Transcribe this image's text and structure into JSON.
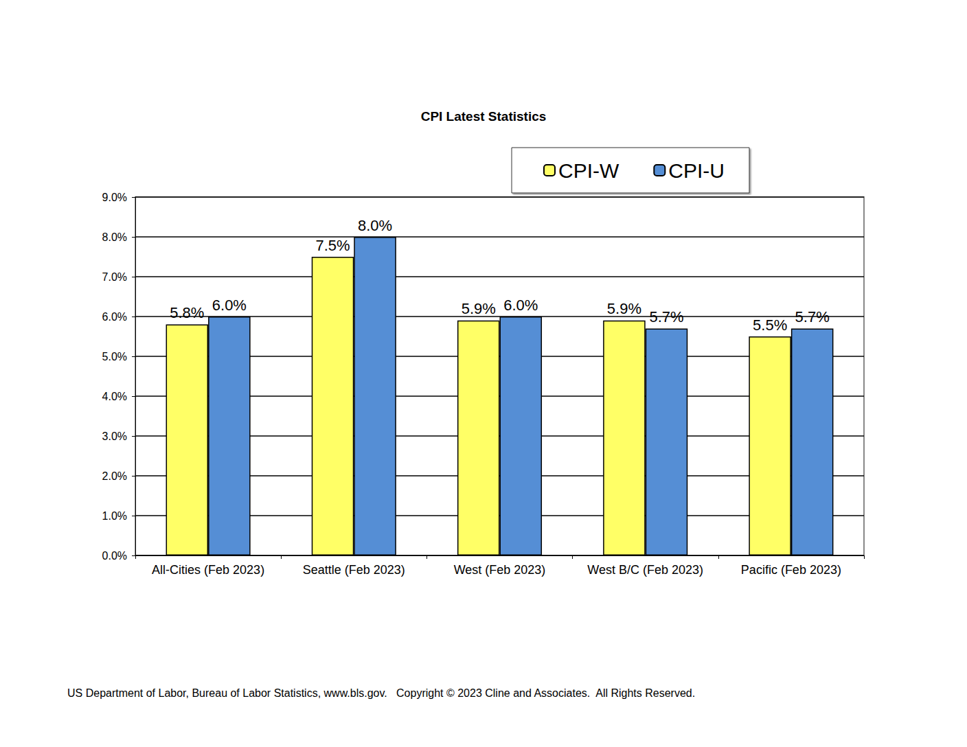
{
  "chart_data": {
    "type": "bar",
    "title": "CPI Latest Statistics",
    "categories": [
      "All-Cities (Feb 2023)",
      "Seattle (Feb 2023)",
      "West (Feb 2023)",
      "West B/C (Feb 2023)",
      "Pacific (Feb 2023)"
    ],
    "series": [
      {
        "name": "CPI-W",
        "color": "#ffff66",
        "values": [
          5.8,
          7.5,
          5.9,
          5.9,
          5.5
        ],
        "value_labels": [
          "5.8%",
          "7.5%",
          "5.9%",
          "5.9%",
          "5.5%"
        ]
      },
      {
        "name": "CPI-U",
        "color": "#558ed5",
        "values": [
          6.0,
          8.0,
          6.0,
          5.7,
          5.7
        ],
        "value_labels": [
          "6.0%",
          "8.0%",
          "6.0%",
          "5.7%",
          "5.7%"
        ]
      }
    ],
    "ylim": [
      0,
      9
    ],
    "yticks": [
      {
        "value": 0,
        "label": "0.0%"
      },
      {
        "value": 1,
        "label": "1.0%"
      },
      {
        "value": 2,
        "label": "2.0%"
      },
      {
        "value": 3,
        "label": "3.0%"
      },
      {
        "value": 4,
        "label": "4.0%"
      },
      {
        "value": 5,
        "label": "5.0%"
      },
      {
        "value": 6,
        "label": "6.0%"
      },
      {
        "value": 7,
        "label": "7.0%"
      },
      {
        "value": 8,
        "label": "8.0%"
      },
      {
        "value": 9,
        "label": "9.0%"
      }
    ],
    "grid": true,
    "legend": "top-right",
    "data_labels": true,
    "source": "US Department of Labor, Bureau of Labor Statistics, www.bls.gov.   Copyright © 2023 Cline and Associates.  All Rights Reserved."
  }
}
